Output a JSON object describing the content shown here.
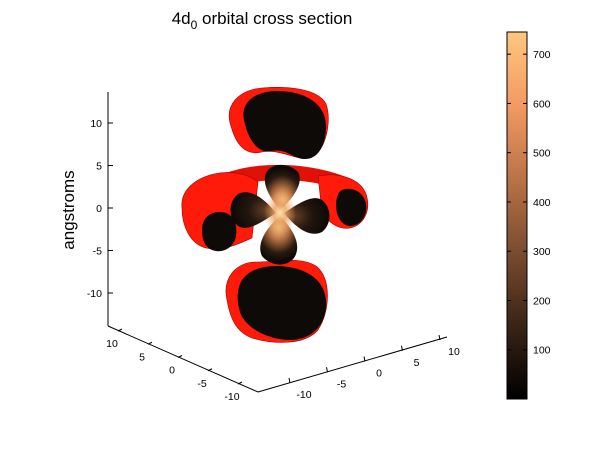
{
  "chart_data": {
    "type": "surface3d",
    "title_main": "4d",
    "title_subscript": "0",
    "title_rest": " orbital cross section",
    "zlabel": "angstroms",
    "z_ticks": [
      "10",
      "5",
      "0",
      "-5",
      "-10"
    ],
    "y_ticks_left": [
      "10",
      "5",
      "0",
      "-5",
      "-10"
    ],
    "x_ticks_right": [
      "-10",
      "-5",
      "0",
      "5",
      "10"
    ],
    "zlim": [
      -14,
      14
    ],
    "colorbar": {
      "ticks": [
        "700",
        "600",
        "500",
        "400",
        "300",
        "200",
        "100"
      ],
      "tick_values": [
        700,
        600,
        500,
        400,
        300,
        200,
        100
      ],
      "range": [
        0,
        745
      ],
      "colormap": "copper",
      "colors": [
        "#000000",
        "#3a2416",
        "#7a4c30",
        "#b97347",
        "#f29a62",
        "#ffc77f"
      ]
    },
    "surface_color": "#ff1a0a",
    "cut_face_color": "#0d0a08"
  }
}
